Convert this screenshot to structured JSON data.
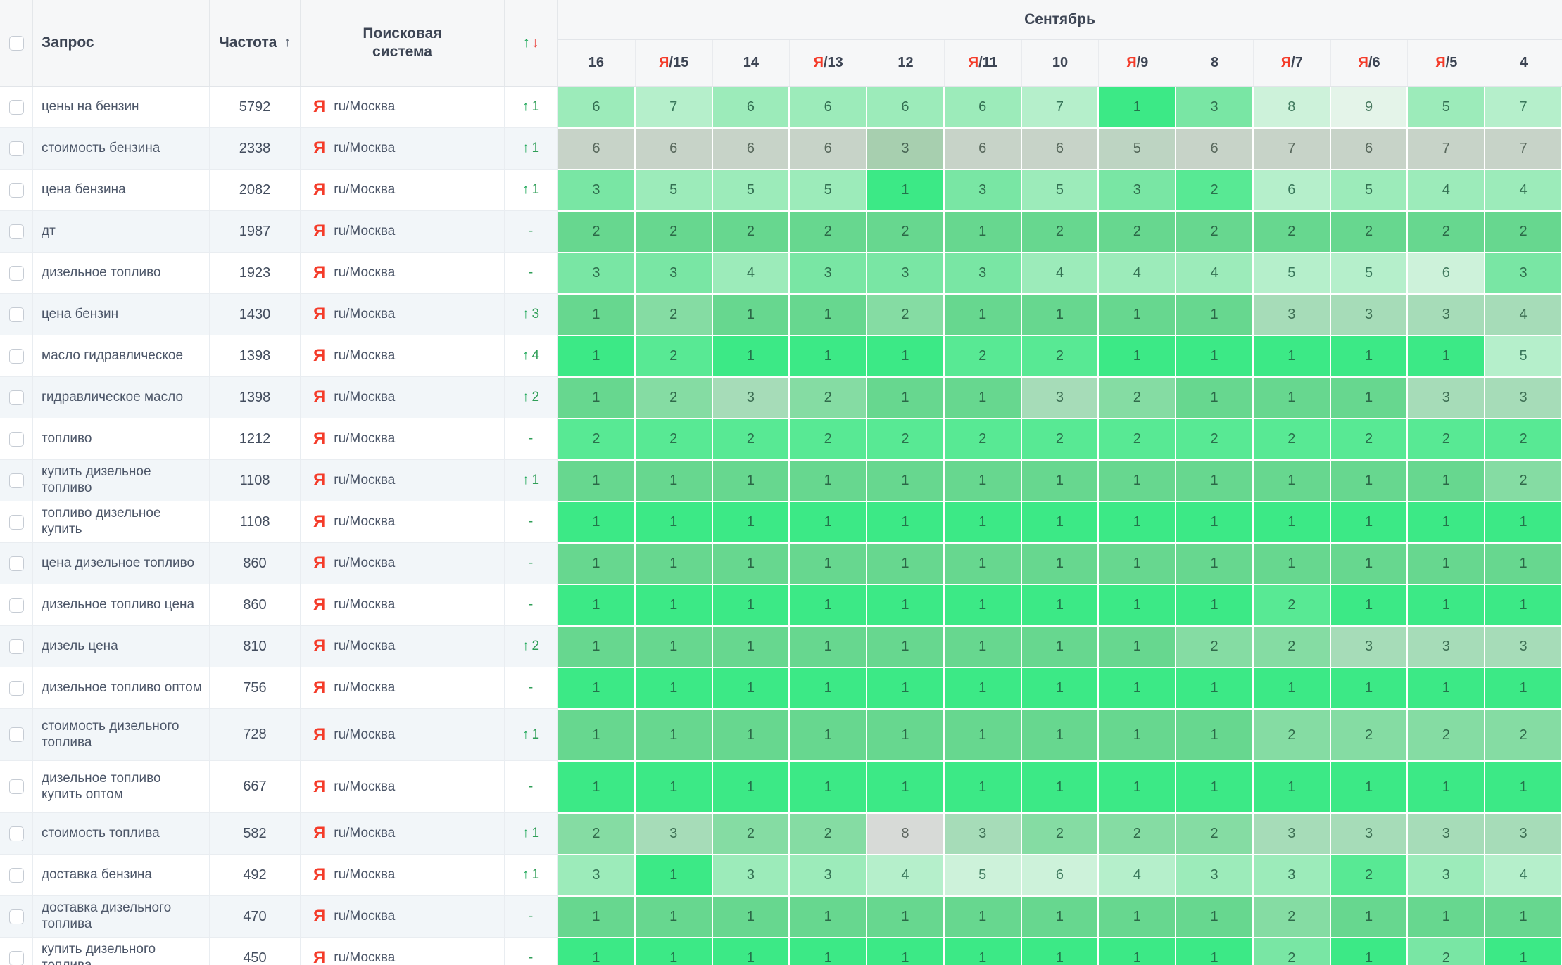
{
  "header": {
    "select_all": "",
    "query": "Запрос",
    "frequency": "Частота",
    "frequency_sort_arrow": "↑",
    "search_engine": "Поисковая система",
    "change_up_symbol": "↑",
    "change_down_symbol": "↓",
    "month": "Сентябрь",
    "ya_letter": "Я",
    "dates": [
      {
        "ya": false,
        "day": "16"
      },
      {
        "ya": true,
        "day": "15"
      },
      {
        "ya": false,
        "day": "14"
      },
      {
        "ya": true,
        "day": "13"
      },
      {
        "ya": false,
        "day": "12"
      },
      {
        "ya": true,
        "day": "11"
      },
      {
        "ya": false,
        "day": "10"
      },
      {
        "ya": true,
        "day": "9"
      },
      {
        "ya": false,
        "day": "8"
      },
      {
        "ya": true,
        "day": "7"
      },
      {
        "ya": true,
        "day": "6"
      },
      {
        "ya": true,
        "day": "5"
      },
      {
        "ya": false,
        "day": "4"
      }
    ]
  },
  "search_engine": {
    "icon": "Я",
    "icon_color": "#f43b29",
    "region": "ru/Москва"
  },
  "no_change_symbol": "-",
  "palette": {
    "g1": {
      "bg": "#3ce986",
      "fg": "#23734b"
    },
    "g2": {
      "bg": "#58e994",
      "fg": "#2a6f4c"
    },
    "g3": {
      "bg": "#79e6a4",
      "fg": "#2e6b4c"
    },
    "g4": {
      "bg": "#9cebba",
      "fg": "#336f52"
    },
    "g5": {
      "bg": "#b5efcb",
      "fg": "#38765a"
    },
    "g6": {
      "bg": "#cdf2da",
      "fg": "#40795e"
    },
    "g7": {
      "bg": "#e4f4e9",
      "fg": "#4a7a61"
    },
    "m1": {
      "bg": "#67d78f",
      "fg": "#2b6847"
    },
    "m2": {
      "bg": "#85dca3",
      "fg": "#30694a"
    },
    "m3": {
      "bg": "#a6dcb8",
      "fg": "#3d6e53"
    },
    "x1": {
      "bg": "#c7d3c8",
      "fg": "#58685c"
    },
    "x2": {
      "bg": "#d7dad7",
      "fg": "#5d655f"
    },
    "x3": {
      "bg": "#a7cfaf",
      "fg": "#476353"
    },
    "x4": {
      "bg": "#bdd4c2",
      "fg": "#526658"
    }
  },
  "rows": [
    {
      "query": "цены на бензин",
      "frequency": "5792",
      "change": {
        "dir": "up",
        "value": "1"
      },
      "tall": false,
      "cells": [
        [
          6,
          "g4"
        ],
        [
          7,
          "g5"
        ],
        [
          6,
          "g4"
        ],
        [
          6,
          "g4"
        ],
        [
          6,
          "g4"
        ],
        [
          6,
          "g4"
        ],
        [
          7,
          "g5"
        ],
        [
          1,
          "g1"
        ],
        [
          3,
          "g3"
        ],
        [
          8,
          "g6"
        ],
        [
          9,
          "g7"
        ],
        [
          5,
          "g4"
        ],
        [
          7,
          "g5"
        ]
      ]
    },
    {
      "query": "стоимость бензина",
      "frequency": "2338",
      "change": {
        "dir": "up",
        "value": "1"
      },
      "tall": false,
      "cells": [
        [
          6,
          "x1"
        ],
        [
          6,
          "x1"
        ],
        [
          6,
          "x1"
        ],
        [
          6,
          "x1"
        ],
        [
          3,
          "x3"
        ],
        [
          6,
          "x1"
        ],
        [
          6,
          "x1"
        ],
        [
          5,
          "x4"
        ],
        [
          6,
          "x1"
        ],
        [
          7,
          "x1"
        ],
        [
          6,
          "x1"
        ],
        [
          7,
          "x1"
        ],
        [
          7,
          "x1"
        ]
      ]
    },
    {
      "query": "цена бензина",
      "frequency": "2082",
      "change": {
        "dir": "up",
        "value": "1"
      },
      "tall": false,
      "cells": [
        [
          3,
          "g3"
        ],
        [
          5,
          "g4"
        ],
        [
          5,
          "g4"
        ],
        [
          5,
          "g4"
        ],
        [
          1,
          "g1"
        ],
        [
          3,
          "g3"
        ],
        [
          5,
          "g4"
        ],
        [
          3,
          "g3"
        ],
        [
          2,
          "g2"
        ],
        [
          6,
          "g5"
        ],
        [
          5,
          "g4"
        ],
        [
          4,
          "g4"
        ],
        [
          4,
          "g4"
        ]
      ]
    },
    {
      "query": "дт",
      "frequency": "1987",
      "change": {
        "dir": "none",
        "value": ""
      },
      "tall": false,
      "cells": [
        [
          2,
          "m1"
        ],
        [
          2,
          "m1"
        ],
        [
          2,
          "m1"
        ],
        [
          2,
          "m1"
        ],
        [
          2,
          "m1"
        ],
        [
          1,
          "m1"
        ],
        [
          2,
          "m1"
        ],
        [
          2,
          "m1"
        ],
        [
          2,
          "m1"
        ],
        [
          2,
          "m1"
        ],
        [
          2,
          "m1"
        ],
        [
          2,
          "m1"
        ],
        [
          2,
          "m1"
        ]
      ]
    },
    {
      "query": "дизельное топливо",
      "frequency": "1923",
      "change": {
        "dir": "none",
        "value": ""
      },
      "tall": false,
      "cells": [
        [
          3,
          "g3"
        ],
        [
          3,
          "g3"
        ],
        [
          4,
          "g4"
        ],
        [
          3,
          "g3"
        ],
        [
          3,
          "g3"
        ],
        [
          3,
          "g3"
        ],
        [
          4,
          "g4"
        ],
        [
          4,
          "g4"
        ],
        [
          4,
          "g4"
        ],
        [
          5,
          "g5"
        ],
        [
          5,
          "g5"
        ],
        [
          6,
          "g6"
        ],
        [
          3,
          "g3"
        ]
      ]
    },
    {
      "query": "цена бензин",
      "frequency": "1430",
      "change": {
        "dir": "up",
        "value": "3"
      },
      "tall": false,
      "cells": [
        [
          1,
          "m1"
        ],
        [
          2,
          "m2"
        ],
        [
          1,
          "m1"
        ],
        [
          1,
          "m1"
        ],
        [
          2,
          "m2"
        ],
        [
          1,
          "m1"
        ],
        [
          1,
          "m1"
        ],
        [
          1,
          "m1"
        ],
        [
          1,
          "m1"
        ],
        [
          3,
          "m3"
        ],
        [
          3,
          "m3"
        ],
        [
          3,
          "m3"
        ],
        [
          4,
          "m3"
        ]
      ]
    },
    {
      "query": "масло гидравлическое",
      "frequency": "1398",
      "change": {
        "dir": "up",
        "value": "4"
      },
      "tall": false,
      "cells": [
        [
          1,
          "g1"
        ],
        [
          2,
          "g2"
        ],
        [
          1,
          "g1"
        ],
        [
          1,
          "g1"
        ],
        [
          1,
          "g1"
        ],
        [
          2,
          "g2"
        ],
        [
          2,
          "g2"
        ],
        [
          1,
          "g1"
        ],
        [
          1,
          "g1"
        ],
        [
          1,
          "g1"
        ],
        [
          1,
          "g1"
        ],
        [
          1,
          "g1"
        ],
        [
          5,
          "g5"
        ]
      ]
    },
    {
      "query": "гидравлическое масло",
      "frequency": "1398",
      "change": {
        "dir": "up",
        "value": "2"
      },
      "tall": false,
      "cells": [
        [
          1,
          "m1"
        ],
        [
          2,
          "m2"
        ],
        [
          3,
          "m3"
        ],
        [
          2,
          "m2"
        ],
        [
          1,
          "m1"
        ],
        [
          1,
          "m1"
        ],
        [
          3,
          "m3"
        ],
        [
          2,
          "m2"
        ],
        [
          1,
          "m1"
        ],
        [
          1,
          "m1"
        ],
        [
          1,
          "m1"
        ],
        [
          3,
          "m3"
        ],
        [
          3,
          "m3"
        ]
      ]
    },
    {
      "query": "топливо",
      "frequency": "1212",
      "change": {
        "dir": "none",
        "value": ""
      },
      "tall": false,
      "cells": [
        [
          2,
          "g2"
        ],
        [
          2,
          "g2"
        ],
        [
          2,
          "g2"
        ],
        [
          2,
          "g2"
        ],
        [
          2,
          "g2"
        ],
        [
          2,
          "g2"
        ],
        [
          2,
          "g2"
        ],
        [
          2,
          "g2"
        ],
        [
          2,
          "g2"
        ],
        [
          2,
          "g2"
        ],
        [
          2,
          "g2"
        ],
        [
          2,
          "g2"
        ],
        [
          2,
          "g2"
        ]
      ]
    },
    {
      "query": "купить дизельное топливо",
      "frequency": "1108",
      "change": {
        "dir": "up",
        "value": "1"
      },
      "tall": false,
      "cells": [
        [
          1,
          "m1"
        ],
        [
          1,
          "m1"
        ],
        [
          1,
          "m1"
        ],
        [
          1,
          "m1"
        ],
        [
          1,
          "m1"
        ],
        [
          1,
          "m1"
        ],
        [
          1,
          "m1"
        ],
        [
          1,
          "m1"
        ],
        [
          1,
          "m1"
        ],
        [
          1,
          "m1"
        ],
        [
          1,
          "m1"
        ],
        [
          1,
          "m1"
        ],
        [
          2,
          "m2"
        ]
      ]
    },
    {
      "query": "топливо дизельное купить",
      "frequency": "1108",
      "change": {
        "dir": "none",
        "value": ""
      },
      "tall": false,
      "cells": [
        [
          1,
          "g1"
        ],
        [
          1,
          "g1"
        ],
        [
          1,
          "g1"
        ],
        [
          1,
          "g1"
        ],
        [
          1,
          "g1"
        ],
        [
          1,
          "g1"
        ],
        [
          1,
          "g1"
        ],
        [
          1,
          "g1"
        ],
        [
          1,
          "g1"
        ],
        [
          1,
          "g1"
        ],
        [
          1,
          "g1"
        ],
        [
          1,
          "g1"
        ],
        [
          1,
          "g1"
        ]
      ]
    },
    {
      "query": "цена дизельное топливо",
      "frequency": "860",
      "change": {
        "dir": "none",
        "value": ""
      },
      "tall": false,
      "cells": [
        [
          1,
          "m1"
        ],
        [
          1,
          "m1"
        ],
        [
          1,
          "m1"
        ],
        [
          1,
          "m1"
        ],
        [
          1,
          "m1"
        ],
        [
          1,
          "m1"
        ],
        [
          1,
          "m1"
        ],
        [
          1,
          "m1"
        ],
        [
          1,
          "m1"
        ],
        [
          1,
          "m1"
        ],
        [
          1,
          "m1"
        ],
        [
          1,
          "m1"
        ],
        [
          1,
          "m1"
        ]
      ]
    },
    {
      "query": "дизельное топливо цена",
      "frequency": "860",
      "change": {
        "dir": "none",
        "value": ""
      },
      "tall": false,
      "cells": [
        [
          1,
          "g1"
        ],
        [
          1,
          "g1"
        ],
        [
          1,
          "g1"
        ],
        [
          1,
          "g1"
        ],
        [
          1,
          "g1"
        ],
        [
          1,
          "g1"
        ],
        [
          1,
          "g1"
        ],
        [
          1,
          "g1"
        ],
        [
          1,
          "g1"
        ],
        [
          2,
          "g2"
        ],
        [
          1,
          "g1"
        ],
        [
          1,
          "g1"
        ],
        [
          1,
          "g1"
        ]
      ]
    },
    {
      "query": "дизель цена",
      "frequency": "810",
      "change": {
        "dir": "up",
        "value": "2"
      },
      "tall": false,
      "cells": [
        [
          1,
          "m1"
        ],
        [
          1,
          "m1"
        ],
        [
          1,
          "m1"
        ],
        [
          1,
          "m1"
        ],
        [
          1,
          "m1"
        ],
        [
          1,
          "m1"
        ],
        [
          1,
          "m1"
        ],
        [
          1,
          "m1"
        ],
        [
          2,
          "m2"
        ],
        [
          2,
          "m2"
        ],
        [
          3,
          "m3"
        ],
        [
          3,
          "m3"
        ],
        [
          3,
          "m3"
        ]
      ]
    },
    {
      "query": "дизельное топливо оптом",
      "frequency": "756",
      "change": {
        "dir": "none",
        "value": ""
      },
      "tall": false,
      "cells": [
        [
          1,
          "g1"
        ],
        [
          1,
          "g1"
        ],
        [
          1,
          "g1"
        ],
        [
          1,
          "g1"
        ],
        [
          1,
          "g1"
        ],
        [
          1,
          "g1"
        ],
        [
          1,
          "g1"
        ],
        [
          1,
          "g1"
        ],
        [
          1,
          "g1"
        ],
        [
          1,
          "g1"
        ],
        [
          1,
          "g1"
        ],
        [
          1,
          "g1"
        ],
        [
          1,
          "g1"
        ]
      ]
    },
    {
      "query": "стоимость дизельного топлива",
      "frequency": "728",
      "change": {
        "dir": "up",
        "value": "1"
      },
      "tall": true,
      "cells": [
        [
          1,
          "m1"
        ],
        [
          1,
          "m1"
        ],
        [
          1,
          "m1"
        ],
        [
          1,
          "m1"
        ],
        [
          1,
          "m1"
        ],
        [
          1,
          "m1"
        ],
        [
          1,
          "m1"
        ],
        [
          1,
          "m1"
        ],
        [
          1,
          "m1"
        ],
        [
          2,
          "m2"
        ],
        [
          2,
          "m2"
        ],
        [
          2,
          "m2"
        ],
        [
          2,
          "m2"
        ]
      ]
    },
    {
      "query": "дизельное топливо купить оптом",
      "frequency": "667",
      "change": {
        "dir": "none",
        "value": ""
      },
      "tall": true,
      "cells": [
        [
          1,
          "g1"
        ],
        [
          1,
          "g1"
        ],
        [
          1,
          "g1"
        ],
        [
          1,
          "g1"
        ],
        [
          1,
          "g1"
        ],
        [
          1,
          "g1"
        ],
        [
          1,
          "g1"
        ],
        [
          1,
          "g1"
        ],
        [
          1,
          "g1"
        ],
        [
          1,
          "g1"
        ],
        [
          1,
          "g1"
        ],
        [
          1,
          "g1"
        ],
        [
          1,
          "g1"
        ]
      ]
    },
    {
      "query": "стоимость топлива",
      "frequency": "582",
      "change": {
        "dir": "up",
        "value": "1"
      },
      "tall": false,
      "cells": [
        [
          2,
          "m2"
        ],
        [
          3,
          "m3"
        ],
        [
          2,
          "m2"
        ],
        [
          2,
          "m2"
        ],
        [
          8,
          "x2"
        ],
        [
          3,
          "m3"
        ],
        [
          2,
          "m2"
        ],
        [
          2,
          "m2"
        ],
        [
          2,
          "m2"
        ],
        [
          3,
          "m3"
        ],
        [
          3,
          "m3"
        ],
        [
          3,
          "m3"
        ],
        [
          3,
          "m3"
        ]
      ]
    },
    {
      "query": "доставка бензина",
      "frequency": "492",
      "change": {
        "dir": "up",
        "value": "1"
      },
      "tall": false,
      "cells": [
        [
          3,
          "g4"
        ],
        [
          1,
          "g1"
        ],
        [
          3,
          "g4"
        ],
        [
          3,
          "g4"
        ],
        [
          4,
          "g5"
        ],
        [
          5,
          "g6"
        ],
        [
          6,
          "g6"
        ],
        [
          4,
          "g5"
        ],
        [
          3,
          "g4"
        ],
        [
          3,
          "g4"
        ],
        [
          2,
          "g2"
        ],
        [
          3,
          "g4"
        ],
        [
          4,
          "g5"
        ]
      ]
    },
    {
      "query": "доставка дизельного топлива",
      "frequency": "470",
      "change": {
        "dir": "none",
        "value": ""
      },
      "tall": false,
      "cells": [
        [
          1,
          "m1"
        ],
        [
          1,
          "m1"
        ],
        [
          1,
          "m1"
        ],
        [
          1,
          "m1"
        ],
        [
          1,
          "m1"
        ],
        [
          1,
          "m1"
        ],
        [
          1,
          "m1"
        ],
        [
          1,
          "m1"
        ],
        [
          1,
          "m1"
        ],
        [
          2,
          "m2"
        ],
        [
          1,
          "m1"
        ],
        [
          1,
          "m1"
        ],
        [
          1,
          "m1"
        ]
      ]
    },
    {
      "query": "купить дизельного топлива",
      "frequency": "450",
      "change": {
        "dir": "none",
        "value": ""
      },
      "tall": false,
      "cells": [
        [
          1,
          "g1"
        ],
        [
          1,
          "g1"
        ],
        [
          1,
          "g1"
        ],
        [
          1,
          "g1"
        ],
        [
          1,
          "g1"
        ],
        [
          1,
          "g1"
        ],
        [
          1,
          "g1"
        ],
        [
          1,
          "g1"
        ],
        [
          1,
          "g1"
        ],
        [
          2,
          "g3"
        ],
        [
          1,
          "g1"
        ],
        [
          2,
          "g3"
        ],
        [
          1,
          "g1"
        ]
      ]
    }
  ]
}
